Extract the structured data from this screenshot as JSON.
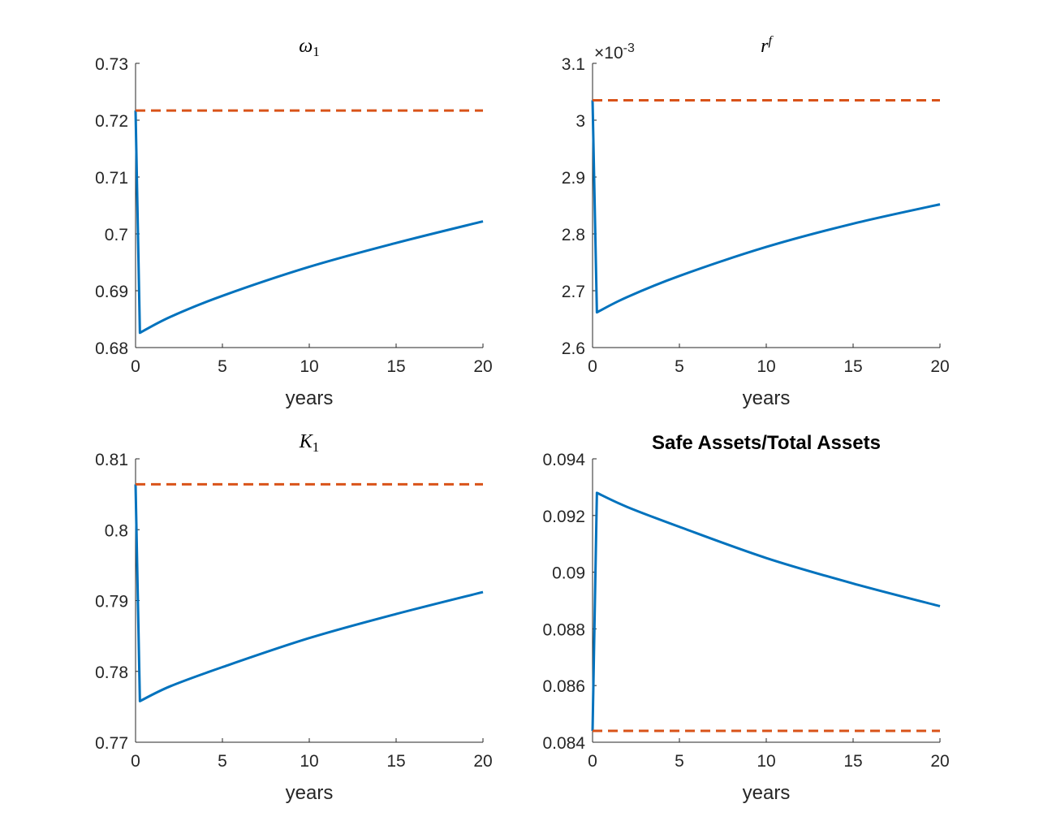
{
  "figure": {
    "background": "#ffffff",
    "axis_color": "#262626",
    "series_colors": {
      "response": "#0072BD",
      "steady_state": "#D95319"
    }
  },
  "chart_data": [
    {
      "type": "line",
      "title": "ω1",
      "title_math": {
        "base": "ω",
        "sub": "1",
        "sup": ""
      },
      "xlabel": "years",
      "xlim": [
        0,
        20
      ],
      "ylim": [
        0.68,
        0.73
      ],
      "xticks": [
        0,
        5,
        10,
        15,
        20
      ],
      "xtick_labels": [
        "0",
        "5",
        "10",
        "15",
        "20"
      ],
      "yticks": [
        0.68,
        0.69,
        0.7,
        0.71,
        0.72,
        0.73
      ],
      "ytick_labels": [
        "0.68",
        "0.69",
        "0.7",
        "0.71",
        "0.72",
        "0.73"
      ],
      "exponent_label": null,
      "series": [
        {
          "style": "solid",
          "x": [
            0,
            0.25,
            2,
            5,
            10,
            15,
            20
          ],
          "y": [
            0.7217,
            0.6826,
            0.6854,
            0.6891,
            0.6942,
            0.6984,
            0.7022
          ]
        },
        {
          "style": "dashed",
          "x": [
            0,
            20
          ],
          "y": [
            0.7217,
            0.7217
          ]
        }
      ]
    },
    {
      "type": "line",
      "title": "r^f",
      "title_math": {
        "base": "r",
        "sub": "",
        "sup": "f"
      },
      "xlabel": "years",
      "xlim": [
        0,
        20
      ],
      "ylim": [
        2.6,
        3.1
      ],
      "xticks": [
        0,
        5,
        10,
        15,
        20
      ],
      "xtick_labels": [
        "0",
        "5",
        "10",
        "15",
        "20"
      ],
      "yticks": [
        2.6,
        2.7,
        2.8,
        2.9,
        3.0,
        3.1
      ],
      "ytick_labels": [
        "2.6",
        "2.7",
        "2.8",
        "2.9",
        "3",
        "3.1"
      ],
      "exponent_label": {
        "base": "×10",
        "exp": "-3"
      },
      "series": [
        {
          "style": "solid",
          "x": [
            0,
            0.25,
            2,
            5,
            10,
            15,
            20
          ],
          "y": [
            3.035,
            2.662,
            2.689,
            2.726,
            2.777,
            2.818,
            2.852
          ]
        },
        {
          "style": "dashed",
          "x": [
            0,
            20
          ],
          "y": [
            3.035,
            3.035
          ]
        }
      ]
    },
    {
      "type": "line",
      "title": "K1",
      "title_math": {
        "base": "K",
        "sub": "1",
        "sup": ""
      },
      "xlabel": "years",
      "xlim": [
        0,
        20
      ],
      "ylim": [
        0.77,
        0.81
      ],
      "xticks": [
        0,
        5,
        10,
        15,
        20
      ],
      "xtick_labels": [
        "0",
        "5",
        "10",
        "15",
        "20"
      ],
      "yticks": [
        0.77,
        0.78,
        0.79,
        0.8,
        0.81
      ],
      "ytick_labels": [
        "0.77",
        "0.78",
        "0.79",
        "0.8",
        "0.81"
      ],
      "exponent_label": null,
      "series": [
        {
          "style": "solid",
          "x": [
            0,
            0.25,
            2,
            5,
            10,
            15,
            20
          ],
          "y": [
            0.8064,
            0.7758,
            0.7779,
            0.7806,
            0.7847,
            0.7881,
            0.7912
          ]
        },
        {
          "style": "dashed",
          "x": [
            0,
            20
          ],
          "y": [
            0.8064,
            0.8064
          ]
        }
      ]
    },
    {
      "type": "line",
      "title": "Safe Assets/Total Assets",
      "title_math": null,
      "xlabel": "years",
      "xlim": [
        0,
        20
      ],
      "ylim": [
        0.084,
        0.094
      ],
      "xticks": [
        0,
        5,
        10,
        15,
        20
      ],
      "xtick_labels": [
        "0",
        "5",
        "10",
        "15",
        "20"
      ],
      "yticks": [
        0.084,
        0.086,
        0.088,
        0.09,
        0.092,
        0.094
      ],
      "ytick_labels": [
        "0.084",
        "0.086",
        "0.088",
        "0.09",
        "0.092",
        "0.094"
      ],
      "exponent_label": null,
      "series": [
        {
          "style": "solid",
          "x": [
            0,
            0.25,
            2,
            5,
            10,
            15,
            20
          ],
          "y": [
            0.0844,
            0.0928,
            0.0923,
            0.0916,
            0.0905,
            0.0896,
            0.0888
          ]
        },
        {
          "style": "dashed",
          "x": [
            0,
            20
          ],
          "y": [
            0.0844,
            0.0844
          ]
        }
      ]
    }
  ]
}
